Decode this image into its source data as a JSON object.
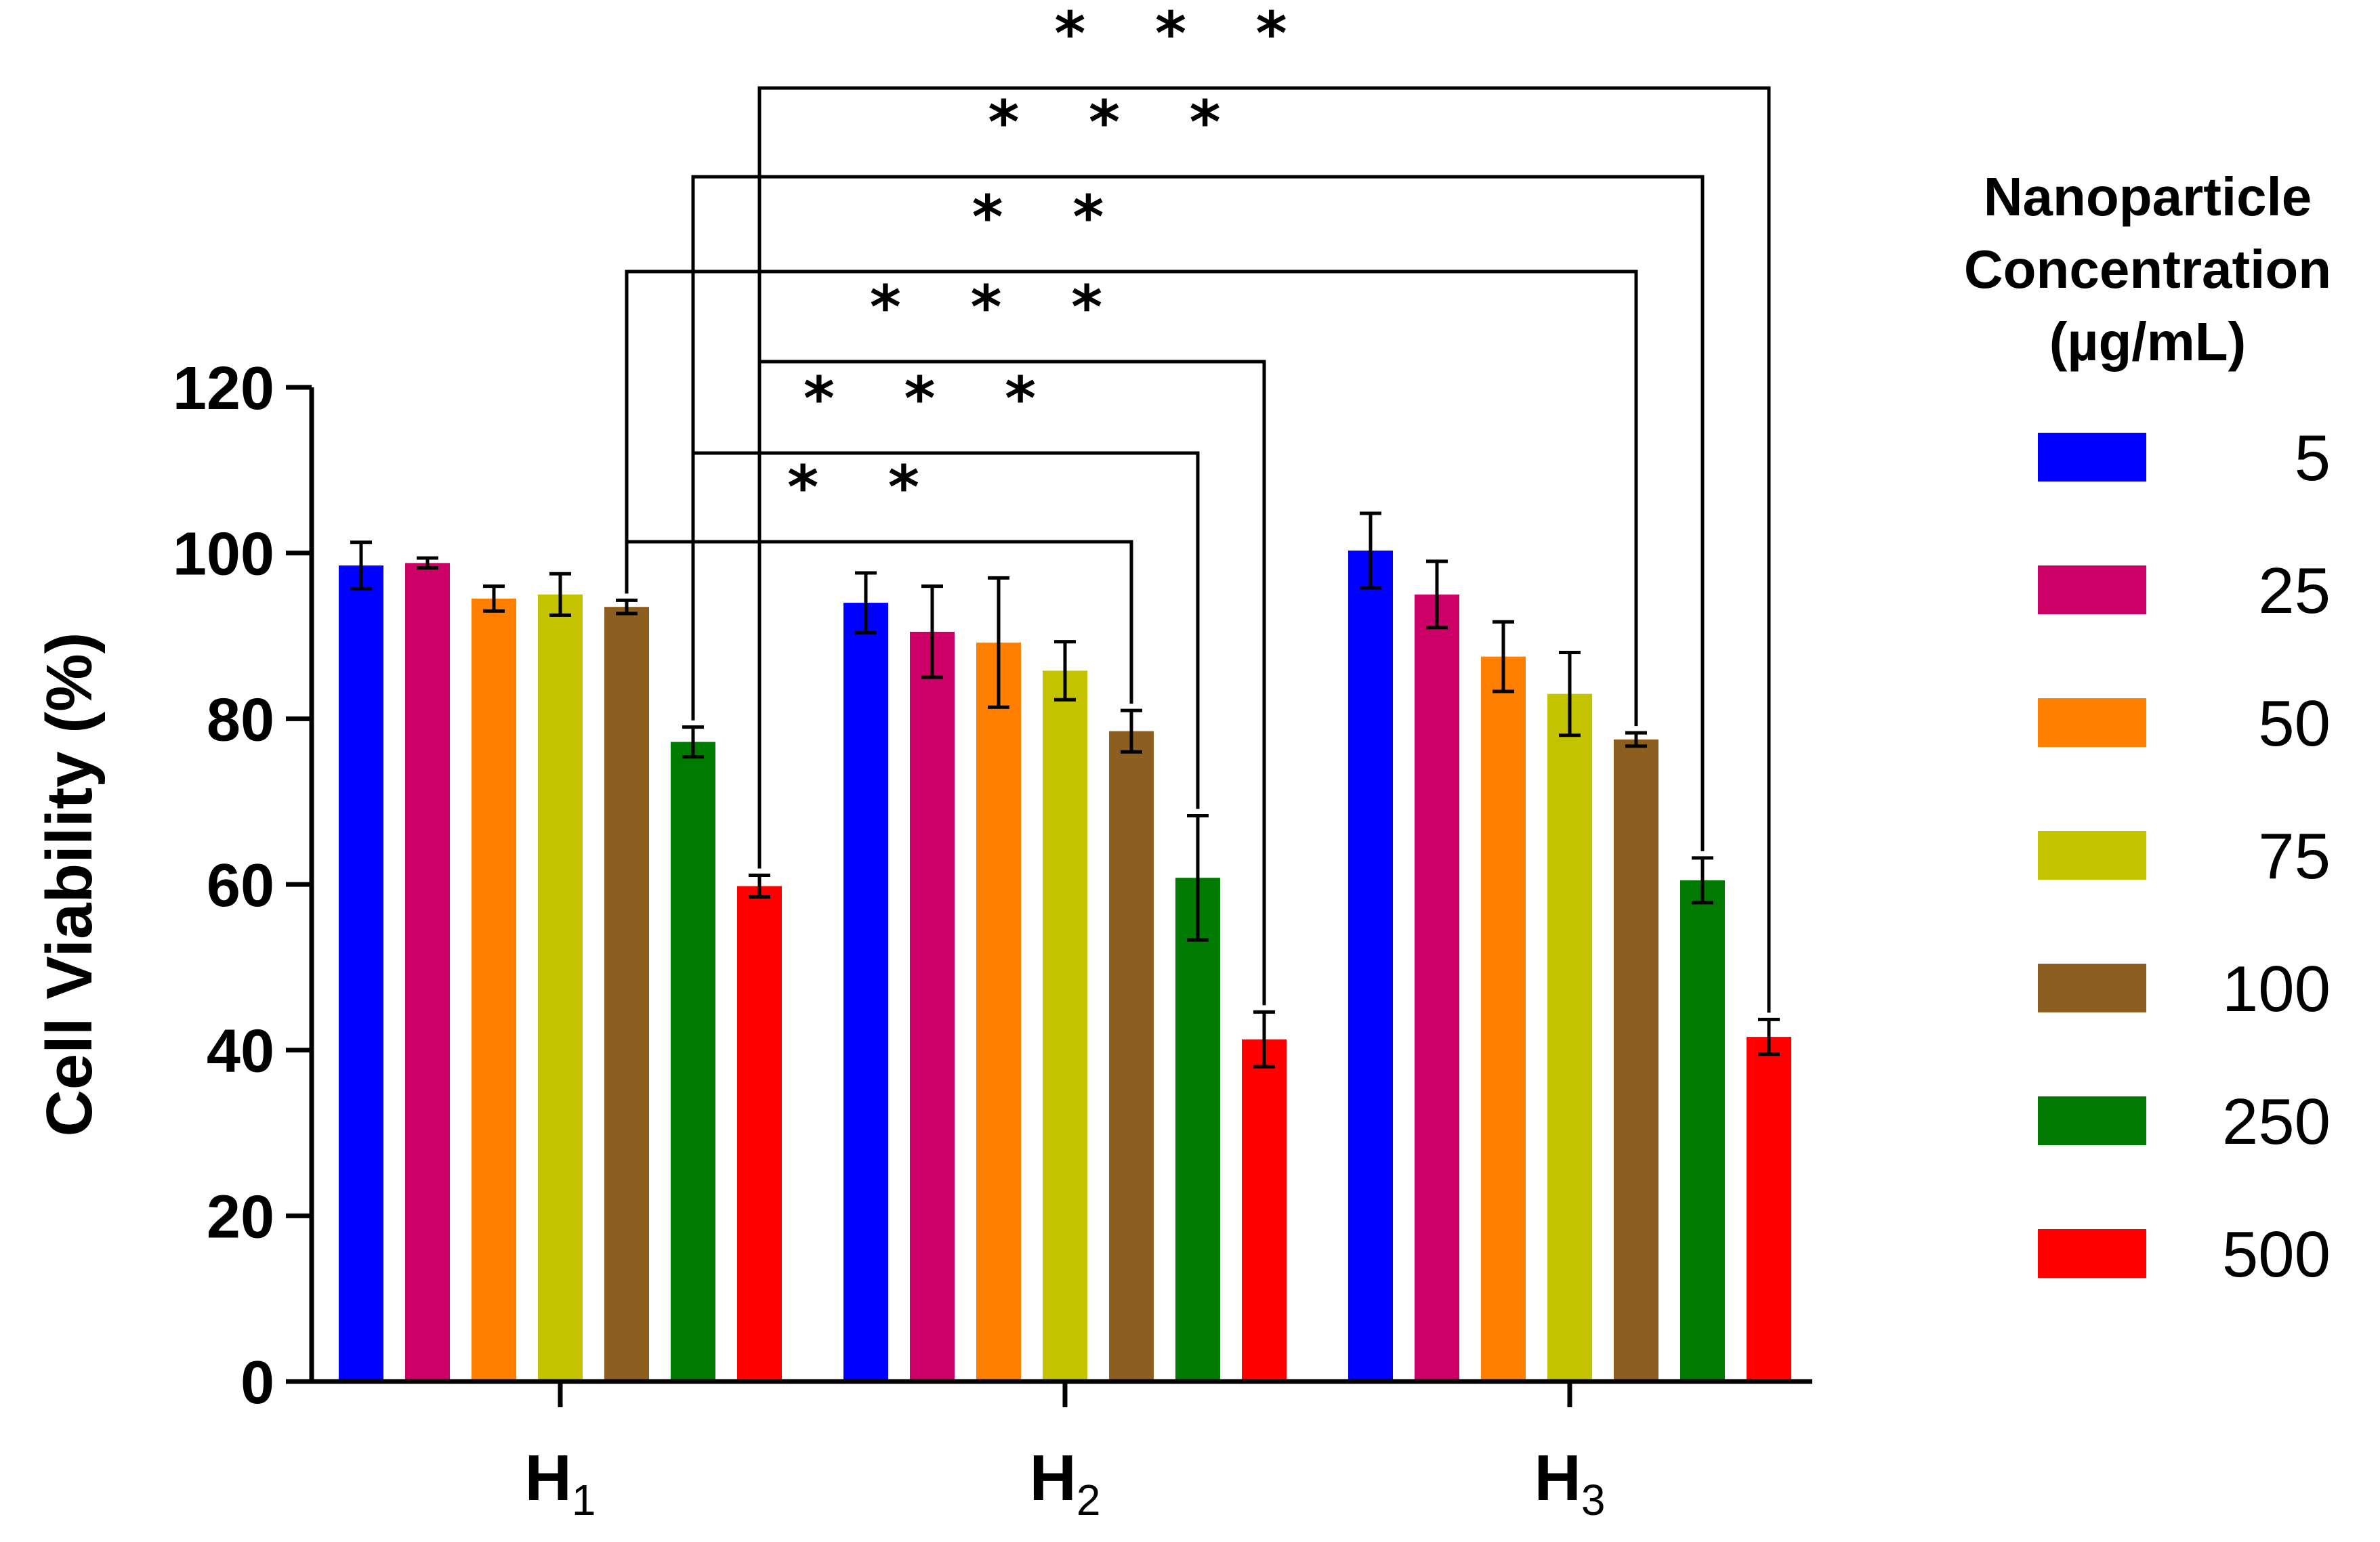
{
  "chart_data": {
    "type": "bar",
    "title": "",
    "xlabel": "",
    "ylabel": "Cell Viability (%)",
    "ylim": [
      0,
      120
    ],
    "yticks": [
      0,
      20,
      40,
      60,
      80,
      100,
      120
    ],
    "categories": [
      {
        "main": "H",
        "sub": "1"
      },
      {
        "main": "H",
        "sub": "2"
      },
      {
        "main": "H",
        "sub": "3"
      }
    ],
    "legend": {
      "title": [
        "Nanoparticle",
        "Concentration",
        "(µg/mL)"
      ],
      "position": "right"
    },
    "series": [
      {
        "name": "5",
        "color": "#0000ff",
        "values": [
          98.5,
          94.0,
          100.3
        ],
        "errors": [
          2.8,
          3.6,
          4.5
        ]
      },
      {
        "name": "25",
        "color": "#cc0066",
        "values": [
          98.8,
          90.5,
          95.0
        ],
        "errors": [
          0.6,
          5.5,
          4.0
        ]
      },
      {
        "name": "50",
        "color": "#ff8000",
        "values": [
          94.5,
          89.2,
          87.5
        ],
        "errors": [
          1.5,
          7.8,
          4.2
        ]
      },
      {
        "name": "75",
        "color": "#c3c300",
        "values": [
          95.0,
          85.8,
          83.0
        ],
        "errors": [
          2.5,
          3.5,
          5.0
        ]
      },
      {
        "name": "100",
        "color": "#8c5f21",
        "values": [
          93.5,
          78.5,
          77.5
        ],
        "errors": [
          0.8,
          2.5,
          0.8
        ]
      },
      {
        "name": "250",
        "color": "#007a00",
        "values": [
          77.2,
          60.8,
          60.5
        ],
        "errors": [
          1.8,
          7.5,
          2.7
        ]
      },
      {
        "name": "500",
        "color": "#ff0000",
        "values": [
          59.8,
          41.3,
          41.6
        ],
        "errors": [
          1.3,
          3.3,
          2.1
        ]
      }
    ],
    "significance": [
      {
        "from": [
          0,
          4
        ],
        "to": [
          1,
          4
        ],
        "label": "* *"
      },
      {
        "from": [
          0,
          5
        ],
        "to": [
          1,
          5
        ],
        "label": "* * *"
      },
      {
        "from": [
          0,
          6
        ],
        "to": [
          1,
          6
        ],
        "label": "* * *"
      },
      {
        "from": [
          0,
          4
        ],
        "to": [
          2,
          4
        ],
        "label": "* *"
      },
      {
        "from": [
          0,
          5
        ],
        "to": [
          2,
          5
        ],
        "label": "* * *"
      },
      {
        "from": [
          0,
          6
        ],
        "to": [
          2,
          6
        ],
        "label": "* * *"
      }
    ]
  }
}
